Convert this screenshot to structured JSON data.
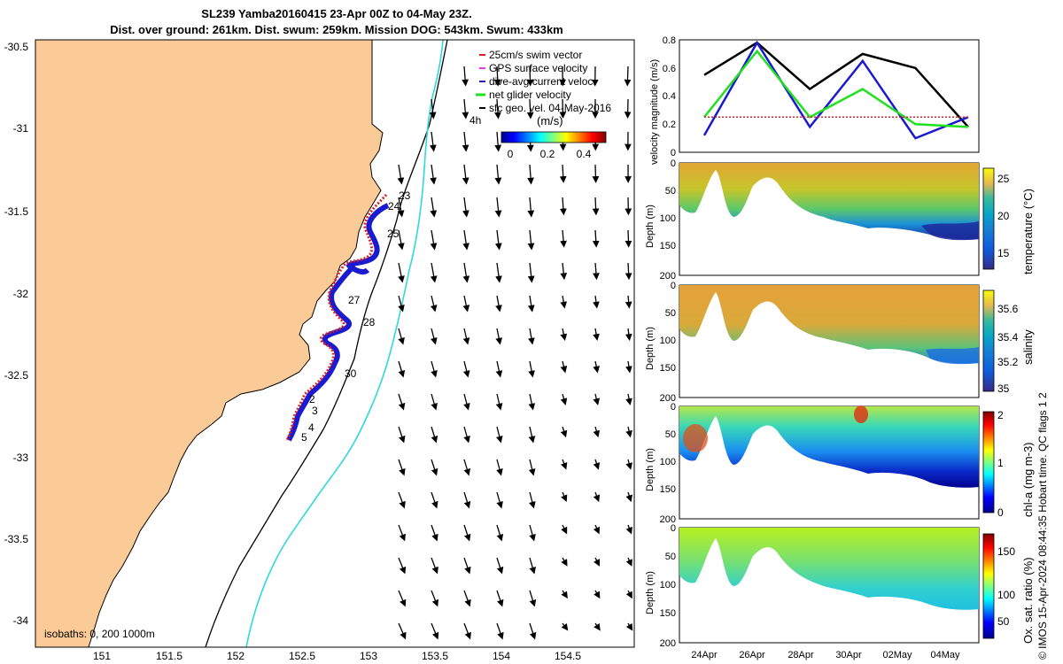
{
  "title": {
    "line1": "SL239 Yamba20160415 23-Apr 00Z to 04-May 23Z.",
    "line2": "Dist. over ground: 261km. Dist. swum: 259km. Mission DOG: 543km. Swum: 433km"
  },
  "map": {
    "lon_ticks": [
      "151",
      "151.5",
      "152",
      "152.5",
      "153",
      "153.5",
      "154",
      "154.5"
    ],
    "lat_ticks": [
      "-30.5",
      "-31",
      "-31.5",
      "-32",
      "-32.5",
      "-33",
      "-33.5",
      "-34"
    ],
    "legend": [
      {
        "label": "25cm/s swim vector",
        "color": "#e02020"
      },
      {
        "label": "GPS surface velocity",
        "color": "#e040e0"
      },
      {
        "label": "dive-avg current veloc.",
        "color": "#2020c0"
      },
      {
        "label": "net glider velocity",
        "color": "#20e020"
      },
      {
        "label": "sfc geo. vel. 04-May-2016",
        "color": "#000000"
      }
    ],
    "colorbar": {
      "unit": "(m/s)",
      "ticks": [
        "0",
        "0.2",
        "0.4"
      ],
      "corner_label": "4h"
    },
    "isobath_label": "isobaths: 0, 200  1000m",
    "day_labels": [
      "23",
      "24",
      "25",
      "27",
      "28",
      "30",
      "2",
      "3",
      "4",
      "5"
    ],
    "land_color": "#fbcb97",
    "isobath_colors": {
      "200m": "#000000",
      "1000m": "#30d8d8"
    }
  },
  "velocity_panel": {
    "ylabel": "velocity magnitude (m/s)",
    "yticks": [
      "0",
      "0.2",
      "0.4",
      "0.6",
      "0.8"
    ]
  },
  "sections": [
    {
      "label": "temperature (°C)",
      "ticks": [
        "25",
        "20",
        "15"
      ],
      "ylabel": "Depth (m)",
      "depth_ticks": [
        "0",
        "50",
        "100",
        "150",
        "200"
      ]
    },
    {
      "label": "salinity",
      "ticks": [
        "35.6",
        "35.4",
        "35.2",
        "35"
      ],
      "ylabel": "Depth (m)",
      "depth_ticks": [
        "0",
        "50",
        "100",
        "150",
        "200"
      ]
    },
    {
      "label": "chl-a (mg m-3)",
      "ticks": [
        "2",
        "1",
        "0"
      ],
      "ylabel": "Depth (m)",
      "depth_ticks": [
        "0",
        "50",
        "100",
        "150",
        "200"
      ]
    },
    {
      "label": "Ox. sat. ratio (%)",
      "ticks": [
        "150",
        "100",
        "50"
      ],
      "ylabel": "Depth (m)",
      "depth_ticks": [
        "0",
        "50",
        "100",
        "150",
        "200"
      ]
    }
  ],
  "time_ticks": [
    "24Apr",
    "26Apr",
    "28Apr",
    "30Apr",
    "02May",
    "04May"
  ],
  "stamp": "© IMOS 15-Apr-2024 08:44:35 Hobart time. QC flags 1  2",
  "chart_data": {
    "type": "line",
    "title": "velocity magnitude (m/s)",
    "x": [
      "24Apr",
      "26Apr",
      "28Apr",
      "30Apr",
      "02May",
      "04May"
    ],
    "ylim": [
      0,
      0.8
    ],
    "series": [
      {
        "name": "",
        "color": "#000000",
        "values": [
          0.55,
          0.78,
          0.45,
          0.7,
          0.6,
          0.18
        ]
      },
      {
        "name": "",
        "color": "#1a1ad0",
        "values": [
          0.12,
          0.78,
          0.18,
          0.65,
          0.1,
          0.25
        ]
      },
      {
        "name": "",
        "color": "#20e020",
        "values": [
          0.25,
          0.72,
          0.25,
          0.45,
          0.2,
          0.18
        ]
      },
      {
        "name": "",
        "color": "#e02020",
        "values": [
          0.25,
          0.25,
          0.25,
          0.25,
          0.25,
          0.25
        ]
      }
    ]
  }
}
